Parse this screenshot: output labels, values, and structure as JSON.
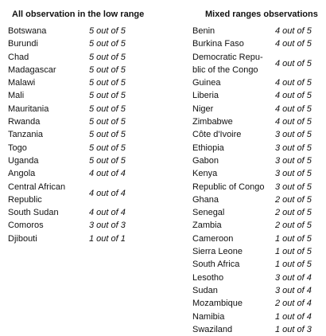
{
  "left": {
    "header": "All observation in the low range",
    "rows": [
      {
        "country": "Botswana",
        "score": "5 out of 5"
      },
      {
        "country": "Burundi",
        "score": "5 out of 5"
      },
      {
        "country": "Chad",
        "score": "5 out of 5"
      },
      {
        "country": "Madagascar",
        "score": "5 out of 5"
      },
      {
        "country": "Malawi",
        "score": "5 out of 5"
      },
      {
        "country": "Mali",
        "score": "5 out of 5"
      },
      {
        "country": "Mauritania",
        "score": "5 out of 5"
      },
      {
        "country": "Rwanda",
        "score": "5 out of 5"
      },
      {
        "country": "Tanzania",
        "score": "5 out of 5"
      },
      {
        "country": "Togo",
        "score": "5 out of 5"
      },
      {
        "country": "Uganda",
        "score": "5 out of 5"
      },
      {
        "country": "Angola",
        "score": "4 out of 4"
      },
      {
        "country": "Central African Republic",
        "score": "4 out of 4"
      },
      {
        "country": "South Sudan",
        "score": "4 out of 4"
      },
      {
        "country": "Comoros",
        "score": "3 out of 3"
      },
      {
        "country": "Djibouti",
        "score": "1 out of 1"
      }
    ]
  },
  "right": {
    "header": "Mixed ranges observations",
    "rows": [
      {
        "country": "Benin",
        "score": "4 out of 5"
      },
      {
        "country": "Burkina Faso",
        "score": "4 out of 5"
      },
      {
        "country": "Democratic Repu-blic of the Congo",
        "score": "4 out of 5"
      },
      {
        "country": "Guinea",
        "score": "4 out of 5"
      },
      {
        "country": "Liberia",
        "score": "4 out of 5"
      },
      {
        "country": "Niger",
        "score": "4 out of 5"
      },
      {
        "country": "Zimbabwe",
        "score": "4 out of 5"
      },
      {
        "country": "Côte d'Ivoire",
        "score": "3 out of 5"
      },
      {
        "country": "Ethiopia",
        "score": "3 out of 5"
      },
      {
        "country": "Gabon",
        "score": "3 out of 5"
      },
      {
        "country": "Kenya",
        "score": "3 out of 5"
      },
      {
        "country": "Republic of Congo",
        "score": "3 out of 5"
      },
      {
        "country": "Ghana",
        "score": "2 out of 5"
      },
      {
        "country": "Senegal",
        "score": "2 out of 5"
      },
      {
        "country": "Zambia",
        "score": "2 out of 5"
      },
      {
        "country": "Cameroon",
        "score": "1 out of 5"
      },
      {
        "country": "Sierra Leone",
        "score": "1 out of 5"
      },
      {
        "country": "South Africa",
        "score": "1 out of 5"
      },
      {
        "country": "Lesotho",
        "score": "3 out of 4"
      },
      {
        "country": "Sudan",
        "score": "3 out of 4"
      },
      {
        "country": "Mozambique",
        "score": "2 out of 4"
      },
      {
        "country": "Namibia",
        "score": "1 out of 4"
      },
      {
        "country": "Swaziland",
        "score": "1 out of 3"
      }
    ]
  }
}
